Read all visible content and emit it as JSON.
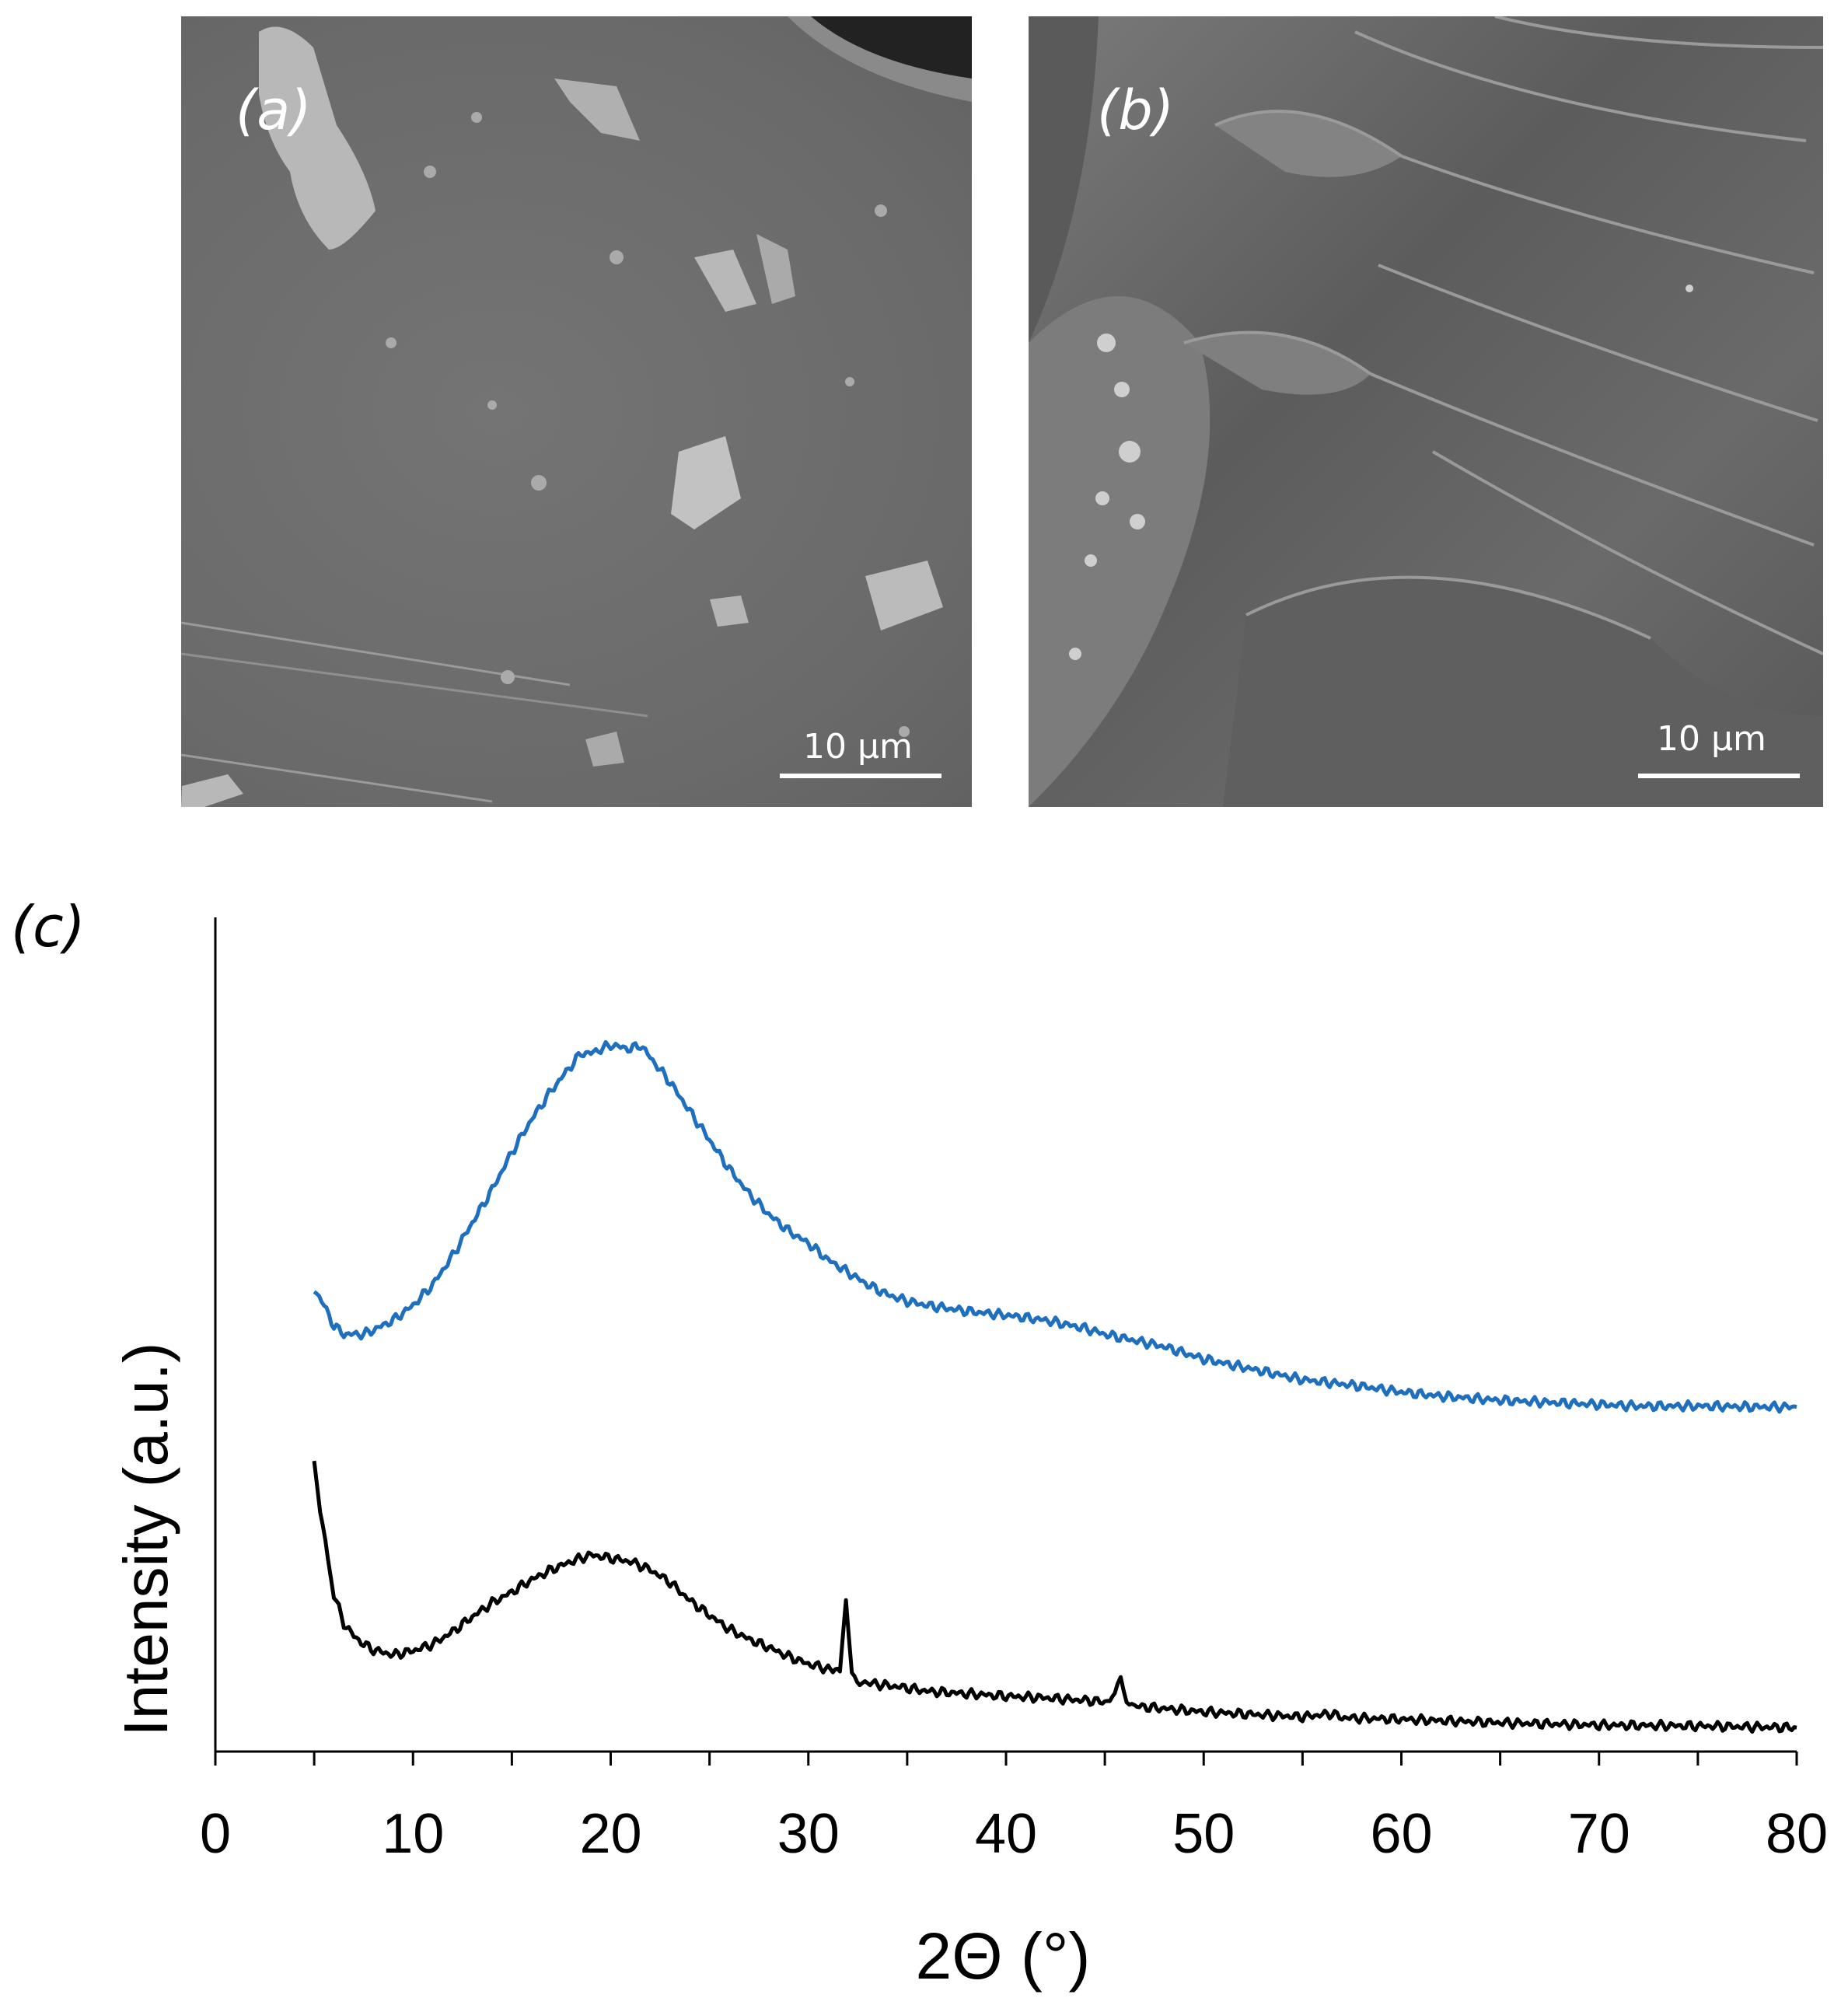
{
  "panels": [
    {
      "label": "(a)",
      "scale_bar": "10 µm"
    },
    {
      "label": "(b)",
      "scale_bar": "10 µm"
    }
  ],
  "chart_label": "(c)",
  "chart_data": {
    "type": "line",
    "title": "",
    "xlabel": "2Θ (°)",
    "ylabel": "Intensity (a.u.)",
    "xlim": [
      0,
      80
    ],
    "ylim": [
      0,
      100
    ],
    "xticks": [
      0,
      10,
      20,
      30,
      40,
      50,
      60,
      70,
      80
    ],
    "grid": false,
    "legend": "none",
    "y_ticks_shown": false,
    "series": [
      {
        "color": "#1f6fbf",
        "x": [
          5,
          5.5,
          6,
          6.5,
          7,
          7.5,
          8,
          9,
          10,
          11,
          12,
          13,
          14,
          15,
          16,
          17,
          18,
          18.5,
          19,
          20,
          21,
          21.5,
          22,
          23,
          24,
          25,
          26,
          27,
          28,
          29,
          30,
          31,
          32,
          33,
          34,
          35,
          36,
          38,
          40,
          42,
          44,
          45,
          46,
          48,
          50,
          52,
          55,
          58,
          60,
          62,
          65,
          68,
          70,
          72,
          75,
          78,
          80
        ],
        "y": [
          56,
          54,
          51.5,
          50.5,
          50.5,
          50.5,
          51,
          52.2,
          54,
          56.5,
          60,
          64,
          68,
          72.5,
          76.5,
          80,
          83,
          84.5,
          84.5,
          85.5,
          85,
          85.5,
          84,
          81,
          77.5,
          74,
          70.5,
          67.5,
          65,
          63,
          61.5,
          59.5,
          58,
          56.5,
          55.3,
          54.5,
          54,
          53.3,
          52.8,
          52.2,
          51.2,
          50.5,
          50,
          49,
          47.5,
          46.5,
          45,
          44.2,
          43.5,
          43,
          42.5,
          42.2,
          42,
          41.8,
          41.8,
          41.7,
          41.7
        ]
      },
      {
        "color": "#000000",
        "x": [
          5,
          5.3,
          5.7,
          6,
          6.5,
          7,
          7.5,
          8,
          9,
          10,
          11,
          12,
          13,
          14,
          15,
          16,
          17,
          18,
          19,
          20,
          21,
          22,
          23,
          24,
          25,
          26,
          27,
          28,
          29,
          30,
          31,
          31.6,
          31.9,
          32.2,
          32.6,
          33,
          34,
          35,
          36,
          38,
          40,
          42,
          44,
          45,
          45.5,
          45.8,
          46.1,
          46.5,
          47,
          50,
          55,
          56.5,
          57,
          60,
          65,
          70,
          75,
          80
        ],
        "y": [
          35.5,
          29,
          23,
          19,
          15.5,
          14,
          13,
          12.3,
          11.7,
          12.2,
          13,
          14.5,
          16.3,
          18,
          19.3,
          20.8,
          22,
          23,
          23.8,
          23.4,
          23,
          22,
          20.5,
          18.3,
          16.5,
          14.8,
          13.6,
          12.6,
          11.5,
          10.6,
          10,
          9.8,
          18.5,
          9.3,
          8.6,
          8.3,
          8,
          7.7,
          7.3,
          7,
          6.7,
          6.5,
          6.2,
          6,
          6.6,
          8.8,
          6.5,
          5.5,
          5.4,
          4.8,
          4.2,
          4.6,
          4.1,
          3.9,
          3.5,
          3.2,
          3.1,
          2.9
        ]
      }
    ]
  }
}
